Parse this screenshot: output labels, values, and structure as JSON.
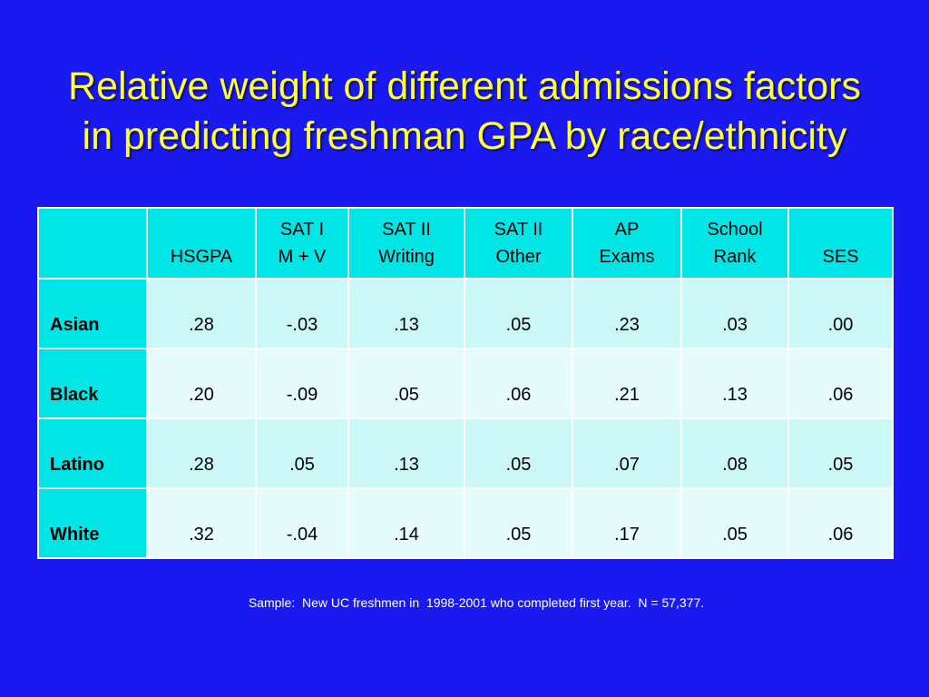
{
  "title": {
    "line1": "Relative weight of different admissions factors",
    "line2": "in predicting freshman GPA by race/ethnicity"
  },
  "table": {
    "corner": "",
    "columns": [
      {
        "line1": "",
        "line2": "HSGPA"
      },
      {
        "line1": "SAT I",
        "line2": "M + V"
      },
      {
        "line1": "SAT II",
        "line2": "Writing"
      },
      {
        "line1": "SAT II",
        "line2": "Other"
      },
      {
        "line1": "AP",
        "line2": "Exams"
      },
      {
        "line1": "School",
        "line2": "Rank"
      },
      {
        "line1": "",
        "line2": "SES"
      }
    ],
    "rows": [
      {
        "label": "Asian",
        "values": [
          ".28",
          "-.03",
          ".13",
          ".05",
          ".23",
          ".03",
          ".00"
        ]
      },
      {
        "label": "Black",
        "values": [
          ".20",
          "-.09",
          ".05",
          ".06",
          ".21",
          ".13",
          ".06"
        ]
      },
      {
        "label": "Latino",
        "values": [
          ".28",
          ".05",
          ".13",
          ".05",
          ".07",
          ".08",
          ".05"
        ]
      },
      {
        "label": "White",
        "values": [
          ".32",
          "-.04",
          ".14",
          ".05",
          ".17",
          ".05",
          ".06"
        ]
      }
    ]
  },
  "footnote": "Sample:  New UC freshmen in  1998-2001 who completed first year.  N = 57,377.",
  "colors": {
    "background": "#1a1af0",
    "title": "#ffff33",
    "header_cell": "#00e5e5",
    "row_light": "#e6fbfb",
    "row_tint": "#ccf7f7"
  }
}
